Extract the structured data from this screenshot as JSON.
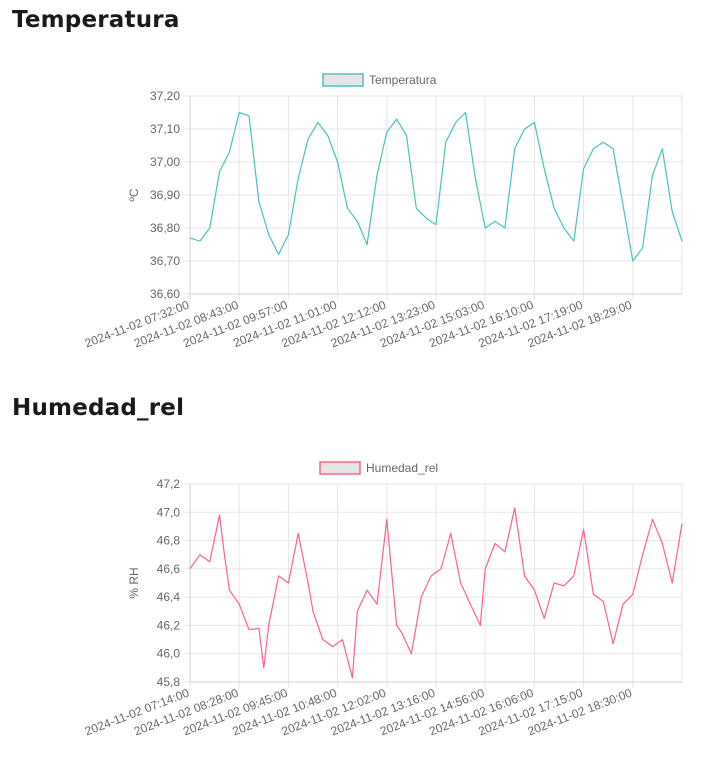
{
  "sections": [
    {
      "heading": "Temperatura"
    },
    {
      "heading": "Humedad_rel"
    }
  ],
  "chart_data": [
    {
      "type": "line",
      "legend": "Temperatura",
      "ylabel": "ºC",
      "color": "#4bc0c0",
      "ylim": [
        36.6,
        37.2
      ],
      "yticks": [
        "37,20",
        "37,10",
        "37,00",
        "36,90",
        "36,80",
        "36,70",
        "36,60"
      ],
      "xticks": [
        "2024-11-02 07:32:00",
        "2024-11-02 08:43:00",
        "2024-11-02 09:57:00",
        "2024-11-02 11:01:00",
        "2024-11-02 12:12:00",
        "2024-11-02 13:23:00",
        "2024-11-02 15:03:00",
        "2024-11-02 16:10:00",
        "2024-11-02 17:19:00",
        "2024-11-02 18:29:00"
      ],
      "x": [
        0,
        0.02,
        0.04,
        0.06,
        0.08,
        0.1,
        0.12,
        0.14,
        0.16,
        0.18,
        0.2,
        0.22,
        0.24,
        0.26,
        0.28,
        0.3,
        0.32,
        0.34,
        0.36,
        0.38,
        0.4,
        0.42,
        0.44,
        0.46,
        0.48,
        0.5,
        0.52,
        0.54,
        0.56,
        0.58,
        0.6,
        0.62,
        0.64,
        0.66,
        0.68,
        0.7,
        0.72,
        0.74,
        0.76,
        0.78,
        0.8,
        0.82,
        0.84,
        0.86,
        0.88,
        0.9,
        0.92,
        0.94,
        0.96,
        0.98,
        1.0
      ],
      "values": [
        36.77,
        36.76,
        36.8,
        36.97,
        37.03,
        37.15,
        37.14,
        36.88,
        36.78,
        36.72,
        36.78,
        36.95,
        37.07,
        37.12,
        37.08,
        37.0,
        36.86,
        36.82,
        36.75,
        36.96,
        37.09,
        37.13,
        37.08,
        36.86,
        36.83,
        36.81,
        37.06,
        37.12,
        37.15,
        36.95,
        36.8,
        36.82,
        36.8,
        37.04,
        37.1,
        37.12,
        36.98,
        36.86,
        36.8,
        36.76,
        36.98,
        37.04,
        37.06,
        37.04,
        36.87,
        36.7,
        36.74,
        36.96,
        37.04,
        36.85,
        36.76
      ]
    },
    {
      "type": "line",
      "legend": "Humedad_rel",
      "ylabel": "% RH",
      "color": "#ff6384",
      "ylim": [
        45.8,
        47.2
      ],
      "yticks": [
        "47,2",
        "47,0",
        "46,8",
        "46,6",
        "46,4",
        "46,2",
        "46,0",
        "45,8"
      ],
      "xticks": [
        "2024-11-02 07:14:00",
        "2024-11-02 08:28:00",
        "2024-11-02 09:45:00",
        "2024-11-02 10:48:00",
        "2024-11-02 12:02:00",
        "2024-11-02 13:16:00",
        "2024-11-02 14:56:00",
        "2024-11-02 16:06:00",
        "2024-11-02 17:15:00",
        "2024-11-02 18:30:00"
      ],
      "x": [
        0,
        0.02,
        0.04,
        0.06,
        0.07,
        0.08,
        0.1,
        0.12,
        0.14,
        0.15,
        0.16,
        0.18,
        0.2,
        0.22,
        0.24,
        0.25,
        0.27,
        0.29,
        0.31,
        0.33,
        0.34,
        0.36,
        0.38,
        0.4,
        0.42,
        0.43,
        0.45,
        0.47,
        0.49,
        0.51,
        0.53,
        0.55,
        0.57,
        0.59,
        0.6,
        0.62,
        0.64,
        0.66,
        0.68,
        0.7,
        0.72,
        0.74,
        0.76,
        0.78,
        0.8,
        0.82,
        0.84,
        0.86,
        0.88,
        0.9,
        0.92,
        0.94,
        0.96,
        0.98,
        1.0
      ],
      "values": [
        46.6,
        46.7,
        46.65,
        46.98,
        46.7,
        46.45,
        46.35,
        46.17,
        46.18,
        45.9,
        46.2,
        46.55,
        46.5,
        46.85,
        46.5,
        46.3,
        46.1,
        46.05,
        46.1,
        45.83,
        46.3,
        46.45,
        46.35,
        46.95,
        46.2,
        46.15,
        46.0,
        46.4,
        46.55,
        46.6,
        46.85,
        46.5,
        46.35,
        46.2,
        46.6,
        46.78,
        46.72,
        47.03,
        46.55,
        46.45,
        46.25,
        46.5,
        46.48,
        46.55,
        46.88,
        46.42,
        46.37,
        46.07,
        46.35,
        46.42,
        46.7,
        46.95,
        46.78,
        46.5,
        46.92
      ]
    }
  ]
}
